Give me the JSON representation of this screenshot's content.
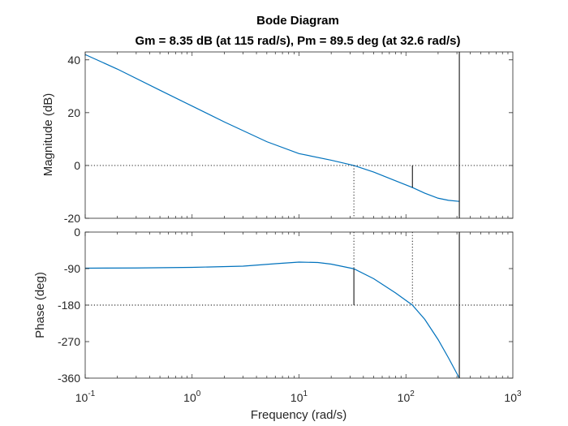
{
  "chart_data": {
    "type": "line",
    "title": "Bode Diagram",
    "subtitle": "Gm = 8.35 dB (at 115 rad/s),  Pm = 89.5 deg (at 32.6 rad/s)",
    "xlabel": "Frequency  (rad/s)",
    "xscale": "log",
    "xlim": [
      0.1,
      1000
    ],
    "xticks": [
      {
        "value": 0.1,
        "base": "10",
        "exp": "-1"
      },
      {
        "value": 1,
        "base": "10",
        "exp": "0"
      },
      {
        "value": 10,
        "base": "10",
        "exp": "1"
      },
      {
        "value": 100,
        "base": "10",
        "exp": "2"
      },
      {
        "value": 1000,
        "base": "10",
        "exp": "3"
      }
    ],
    "color": "#0072BD",
    "gain_crossover_freq": 32.6,
    "phase_crossover_freq": 115,
    "gain_margin_db": 8.35,
    "phase_margin_deg": 89.5,
    "magnitude": {
      "ylabel": "Magnitude (dB)",
      "ylim": [
        -20,
        43
      ],
      "yticks": [
        "40",
        "20",
        "0",
        "-20"
      ],
      "ytick_values": [
        40,
        20,
        0,
        -20
      ],
      "x": [
        0.1,
        0.2,
        0.5,
        1,
        2,
        5,
        10,
        20,
        32.6,
        50,
        80,
        115,
        150,
        200,
        250,
        316
      ],
      "y": [
        42,
        36.5,
        28.5,
        22.5,
        16.5,
        9,
        4.5,
        2,
        0,
        -2.5,
        -5.8,
        -8.35,
        -10.5,
        -12.4,
        -13.2,
        -13.6
      ]
    },
    "phase": {
      "ylabel": "Phase (deg)",
      "ylim": [
        -360,
        0
      ],
      "yticks": [
        "0",
        "-90",
        "-180",
        "-270",
        "-360"
      ],
      "ytick_values": [
        0,
        -90,
        -180,
        -270,
        -360
      ],
      "x": [
        0.1,
        0.3,
        1,
        3,
        6,
        10,
        15,
        20,
        32.6,
        50,
        80,
        115,
        150,
        200,
        250,
        316
      ],
      "y": [
        -89,
        -88.5,
        -87,
        -84,
        -78,
        -74,
        -75,
        -79,
        -90.5,
        -115,
        -150,
        -180,
        -215,
        -265,
        -310,
        -360
      ]
    }
  }
}
